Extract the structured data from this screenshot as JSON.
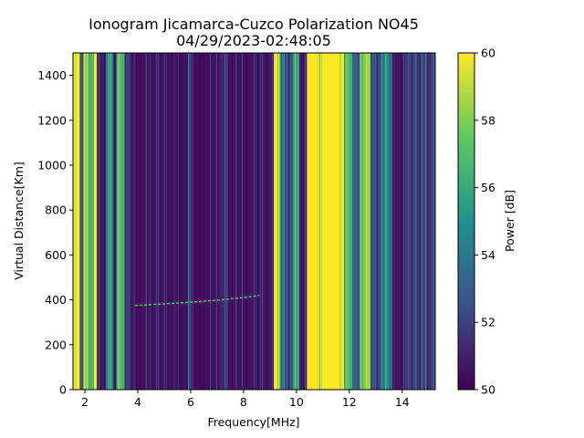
{
  "chart_data": {
    "type": "heatmap",
    "title": "Ionogram Jicamarca-Cuzco Polarization NO45",
    "subtitle": "04/29/2023-02:48:05",
    "xlabel": "Frequency[MHz]",
    "ylabel": "Virtual Distance[Km]",
    "xlim": [
      1.55,
      15.25
    ],
    "ylim": [
      0,
      1500
    ],
    "x_ticks": [
      2,
      4,
      6,
      8,
      10,
      12,
      14
    ],
    "x_tick_labels": [
      "2",
      "4",
      "6",
      "8",
      "10",
      "12",
      "14"
    ],
    "y_ticks": [
      0,
      200,
      400,
      600,
      800,
      1000,
      1200,
      1400
    ],
    "y_tick_labels": [
      "0",
      "200",
      "400",
      "600",
      "800",
      "1000",
      "1200",
      "1400"
    ],
    "colorbar": {
      "label": "Power [dB]",
      "vmin": 50,
      "vmax": 60,
      "ticks": [
        50,
        52,
        54,
        56,
        58,
        60
      ],
      "tick_labels": [
        "50",
        "52",
        "54",
        "56",
        "58",
        "60"
      ],
      "colormap": "viridis",
      "colors": [
        "#440154",
        "#3b528b",
        "#21918c",
        "#5ec962",
        "#fde725"
      ]
    },
    "frequency_bands": [
      {
        "x0": 1.55,
        "x1": 1.8,
        "power": 60
      },
      {
        "x0": 1.8,
        "x1": 1.95,
        "power": 52
      },
      {
        "x0": 1.95,
        "x1": 2.1,
        "power": 59
      },
      {
        "x0": 2.1,
        "x1": 2.35,
        "power": 56
      },
      {
        "x0": 2.35,
        "x1": 2.45,
        "power": 60
      },
      {
        "x0": 2.45,
        "x1": 2.8,
        "power": 51
      },
      {
        "x0": 2.8,
        "x1": 3.05,
        "power": 55
      },
      {
        "x0": 3.05,
        "x1": 3.2,
        "power": 51
      },
      {
        "x0": 3.2,
        "x1": 3.5,
        "power": 57
      },
      {
        "x0": 3.5,
        "x1": 3.7,
        "power": 51
      },
      {
        "x0": 3.7,
        "x1": 5.9,
        "power": 50.5
      },
      {
        "x0": 5.9,
        "x1": 6.1,
        "power": 52
      },
      {
        "x0": 6.1,
        "x1": 7.2,
        "power": 50.5
      },
      {
        "x0": 7.2,
        "x1": 7.4,
        "power": 52
      },
      {
        "x0": 7.4,
        "x1": 9.15,
        "power": 50.5
      },
      {
        "x0": 9.15,
        "x1": 9.35,
        "power": 60
      },
      {
        "x0": 9.35,
        "x1": 9.55,
        "power": 55
      },
      {
        "x0": 9.55,
        "x1": 9.85,
        "power": 52
      },
      {
        "x0": 9.85,
        "x1": 10.1,
        "power": 56
      },
      {
        "x0": 10.1,
        "x1": 10.4,
        "power": 51
      },
      {
        "x0": 10.4,
        "x1": 11.8,
        "power": 60
      },
      {
        "x0": 11.8,
        "x1": 12.1,
        "power": 57
      },
      {
        "x0": 12.1,
        "x1": 12.4,
        "power": 53
      },
      {
        "x0": 12.4,
        "x1": 12.8,
        "power": 58
      },
      {
        "x0": 12.8,
        "x1": 13.2,
        "power": 52
      },
      {
        "x0": 13.2,
        "x1": 13.6,
        "power": 55
      },
      {
        "x0": 13.6,
        "x1": 14.2,
        "power": 51
      },
      {
        "x0": 14.2,
        "x1": 15.25,
        "power": 52
      }
    ],
    "trace": {
      "x": [
        3.9,
        5.0,
        6.0,
        7.0,
        8.0,
        8.6
      ],
      "y": [
        375,
        382,
        390,
        398,
        410,
        420
      ],
      "power": 57
    }
  }
}
